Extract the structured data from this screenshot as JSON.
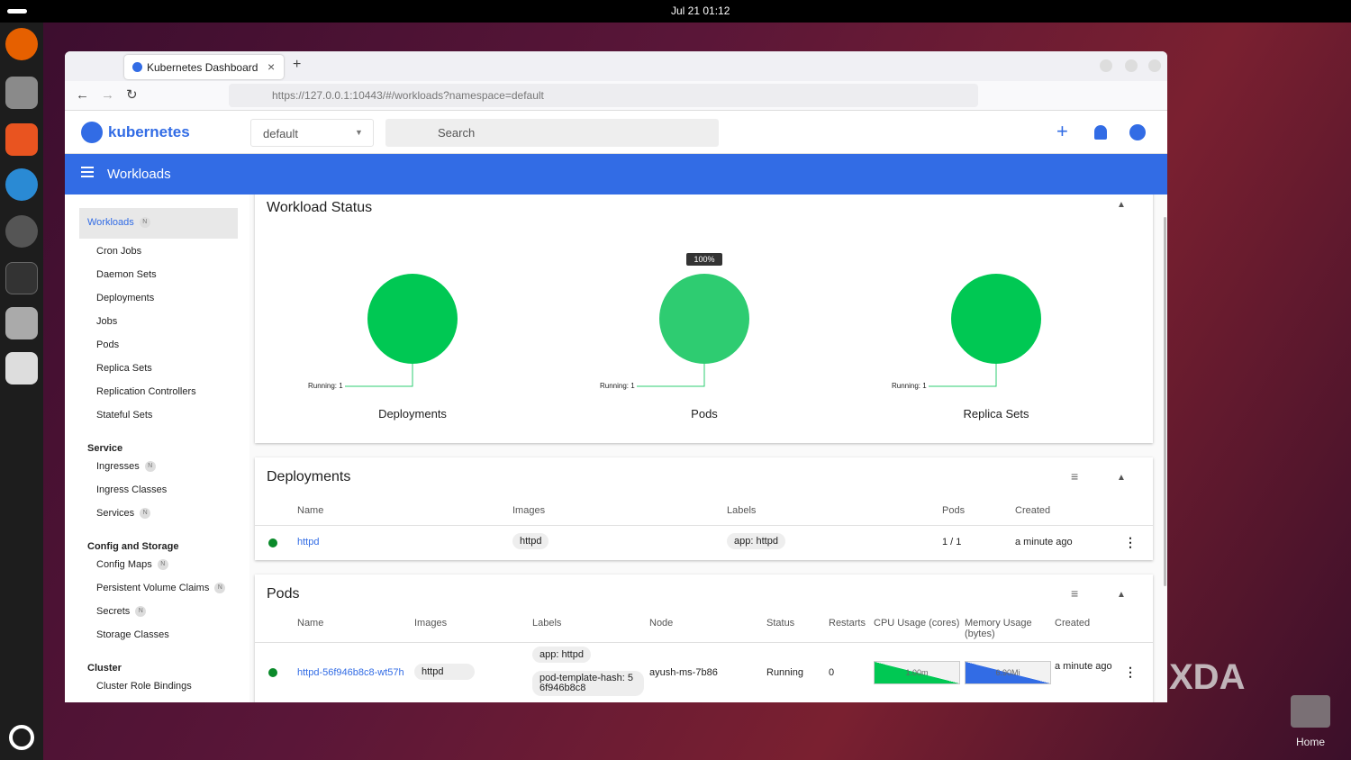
{
  "topbar": {
    "datetime": "Jul 21  01:12"
  },
  "browser": {
    "tab_title": "Kubernetes Dashboard",
    "url": "https://127.0.0.1:10443/#/workloads?namespace=default"
  },
  "app": {
    "brand": "kubernetes",
    "namespace": "default",
    "search": "Search",
    "section": "Workloads"
  },
  "sidebar": {
    "groups": [
      {
        "title": "Workloads",
        "badge": "N",
        "items": [
          {
            "label": "Cron Jobs"
          },
          {
            "label": "Daemon Sets"
          },
          {
            "label": "Deployments"
          },
          {
            "label": "Jobs"
          },
          {
            "label": "Pods"
          },
          {
            "label": "Replica Sets"
          },
          {
            "label": "Replication Controllers"
          },
          {
            "label": "Stateful Sets"
          }
        ]
      },
      {
        "title": "Service",
        "items": [
          {
            "label": "Ingresses",
            "badge": "N"
          },
          {
            "label": "Ingress Classes"
          },
          {
            "label": "Services",
            "badge": "N"
          }
        ]
      },
      {
        "title": "Config and Storage",
        "items": [
          {
            "label": "Config Maps",
            "badge": "N"
          },
          {
            "label": "Persistent Volume Claims",
            "badge": "N"
          },
          {
            "label": "Secrets",
            "badge": "N"
          },
          {
            "label": "Storage Classes"
          }
        ]
      },
      {
        "title": "Cluster",
        "items": [
          {
            "label": "Cluster Role Bindings"
          }
        ]
      }
    ]
  },
  "workload_status": {
    "title": "Workload Status",
    "charts": [
      {
        "label": "Deployments",
        "legend": "Running: 1"
      },
      {
        "label": "Pods",
        "legend": "Running: 1",
        "tooltip": "100%"
      },
      {
        "label": "Replica Sets",
        "legend": "Running: 1"
      }
    ]
  },
  "deployments": {
    "title": "Deployments",
    "columns": [
      "Name",
      "Images",
      "Labels",
      "Pods",
      "Created"
    ],
    "rows": [
      {
        "name": "httpd",
        "image": "httpd",
        "label": "app: httpd",
        "pods": "1 / 1",
        "created": "a minute ago"
      }
    ]
  },
  "pods": {
    "title": "Pods",
    "columns": [
      "Name",
      "Images",
      "Labels",
      "Node",
      "Status",
      "Restarts",
      "CPU Usage (cores)",
      "Memory Usage (bytes)",
      "Created"
    ],
    "rows": [
      {
        "name": "httpd-56f946b8c8-wt57h",
        "image": "httpd",
        "labels": [
          "app: httpd",
          "pod-template-hash: 5 6f946b8c8"
        ],
        "node": "ayush-ms-7b86",
        "status": "Running",
        "restarts": "0",
        "cpu": "1.00m",
        "memory": "6.90Mi",
        "created": "a minute ago"
      }
    ]
  },
  "watermark": "XDA",
  "desktop": {
    "home": "Home"
  }
}
